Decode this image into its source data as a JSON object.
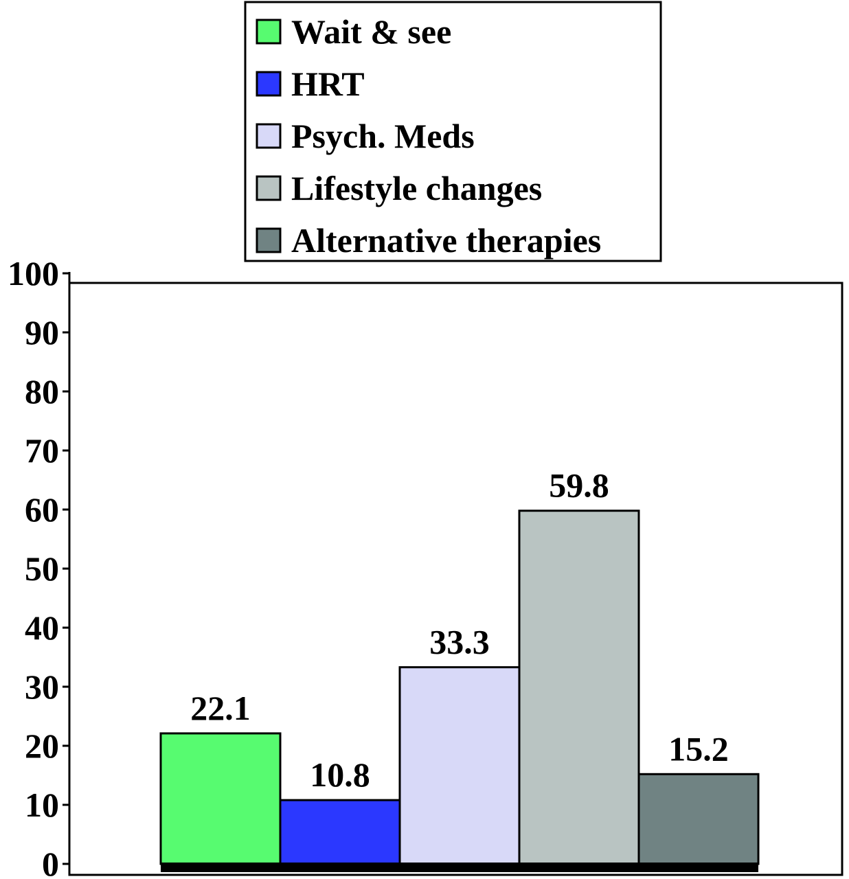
{
  "chart_data": {
    "type": "bar",
    "title": "",
    "xlabel": "",
    "ylabel": "",
    "ylim": [
      0,
      100
    ],
    "yticks": [
      "0",
      "10",
      "20",
      "30",
      "40",
      "50",
      "60",
      "70",
      "80",
      "90",
      "100"
    ],
    "grid": false,
    "legend_position": "top",
    "categories": [
      "Wait & see",
      "HRT",
      "Psych. Meds",
      "Lifestyle changes",
      "Alternative therapies"
    ],
    "values": [
      22.1,
      10.8,
      33.3,
      59.8,
      15.2
    ],
    "value_labels": [
      "22.1",
      "10.8",
      "33.3",
      "59.8",
      "15.2"
    ],
    "colors": [
      "#57fb70",
      "#2b38ff",
      "#d8d9f8",
      "#b9c4c2",
      "#708383"
    ]
  }
}
